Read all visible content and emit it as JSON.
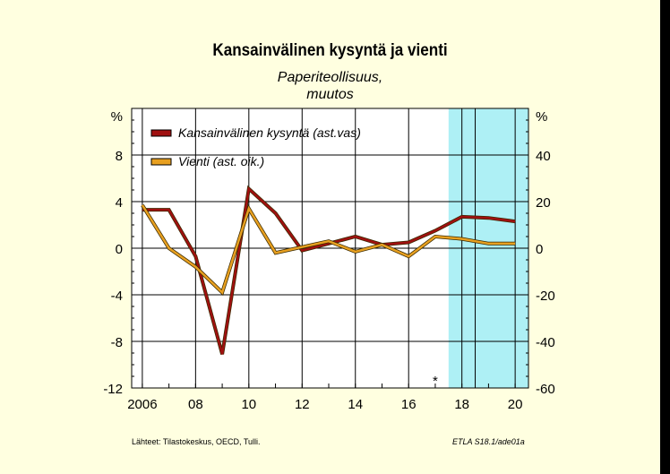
{
  "chart_data": {
    "type": "line",
    "title": "Kansainvälinen kysyntä ja vienti",
    "subtitle": [
      "Paperiteollisuus,",
      "muutos"
    ],
    "x": [
      2006,
      2007,
      2008,
      2009,
      2010,
      2011,
      2012,
      2013,
      2014,
      2015,
      2016,
      2017,
      2018,
      2019,
      2020
    ],
    "xlim": [
      2005.6,
      2020.5
    ],
    "x_ticks": [
      2006,
      2008,
      2010,
      2012,
      2014,
      2016,
      2018,
      2020
    ],
    "x_tick_labels": [
      "2006",
      "08",
      "10",
      "12",
      "14",
      "16",
      "18",
      "20"
    ],
    "y_left": {
      "unit": "%",
      "lim": [
        -12,
        12
      ],
      "ticks": [
        -12,
        -8,
        -4,
        0,
        4,
        8
      ],
      "tick_labels": [
        "-12",
        "-8",
        "-4",
        "0",
        "4",
        "8"
      ]
    },
    "y_right": {
      "unit": "%",
      "lim": [
        -60,
        60
      ],
      "ticks": [
        -60,
        -40,
        -20,
        0,
        20,
        40
      ],
      "tick_labels": [
        "-60",
        "-40",
        "-20",
        "0",
        "20",
        "40"
      ]
    },
    "series": [
      {
        "name": "Kansainvälinen kysyntä (ast.vas)",
        "axis": "left",
        "color": "#a01010",
        "values": [
          3.3,
          3.3,
          -0.7,
          -9.1,
          5.1,
          3.0,
          -0.2,
          0.4,
          1.0,
          0.3,
          0.5,
          1.5,
          2.7,
          2.6,
          2.3
        ]
      },
      {
        "name": "Vienti (ast. oik.)",
        "axis": "right",
        "color": "#e8a020",
        "values": [
          18.5,
          0.0,
          -8.0,
          -19.0,
          17.0,
          -2.0,
          0.5,
          3.0,
          -1.5,
          1.5,
          -3.5,
          5.0,
          4.0,
          2.0,
          2.0
        ]
      }
    ],
    "forecast_shade": {
      "from": 2017.5,
      "to": 2020.5,
      "color": "#aef0f5"
    },
    "forecast_divider": 2018.5,
    "annotation": {
      "text": "*",
      "x": 2017.0,
      "y": -11.0
    },
    "legend_position": "top-left",
    "grid": true
  },
  "footer": {
    "source": "Lähteet:  Tilastokeskus, OECD, Tulli.",
    "code": "ETLA S18.1/ade01a"
  }
}
